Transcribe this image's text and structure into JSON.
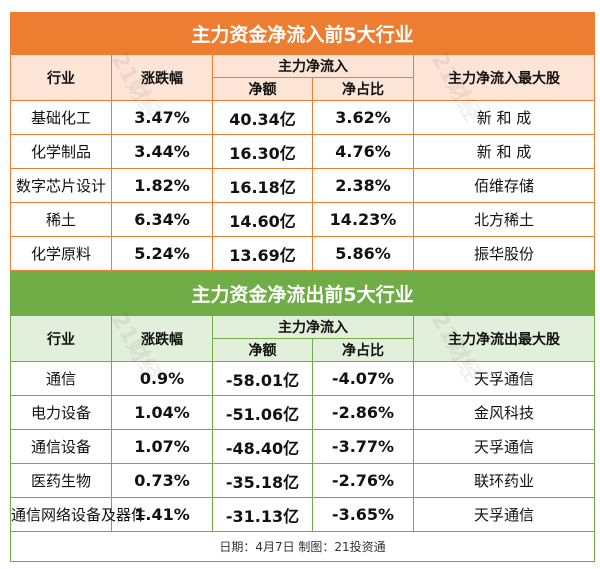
{
  "inflow": {
    "title": "主力资金净流入前5大行业",
    "headers": {
      "industry": "行业",
      "change": "涨跌幅",
      "group": "主力净流入",
      "net": "净额",
      "ratio": "净占比",
      "top_stock": "主力净流入最大股"
    },
    "rows": [
      {
        "industry": "基础化工",
        "change": "3.47%",
        "net": "40.34亿",
        "ratio": "3.62%",
        "stock": "新 和 成"
      },
      {
        "industry": "化学制品",
        "change": "3.44%",
        "net": "16.30亿",
        "ratio": "4.76%",
        "stock": "新 和 成"
      },
      {
        "industry": "数字芯片设计",
        "change": "1.82%",
        "net": "16.18亿",
        "ratio": "2.38%",
        "stock": "佰维存储"
      },
      {
        "industry": "稀土",
        "change": "6.34%",
        "net": "14.60亿",
        "ratio": "14.23%",
        "stock": "北方稀土"
      },
      {
        "industry": "化学原料",
        "change": "5.24%",
        "net": "13.69亿",
        "ratio": "5.86%",
        "stock": "振华股份"
      }
    ]
  },
  "outflow": {
    "title": "主力资金净流出前5大行业",
    "headers": {
      "industry": "行业",
      "change": "涨跌幅",
      "group": "主力净流入",
      "net": "净额",
      "ratio": "净占比",
      "top_stock": "主力净流出最大股"
    },
    "rows": [
      {
        "industry": "通信",
        "change": "0.9%",
        "net": "-58.01亿",
        "ratio": "-4.07%",
        "stock": "天孚通信"
      },
      {
        "industry": "电力设备",
        "change": "1.04%",
        "net": "-51.06亿",
        "ratio": "-2.86%",
        "stock": "金风科技"
      },
      {
        "industry": "通信设备",
        "change": "1.07%",
        "net": "-48.40亿",
        "ratio": "-3.77%",
        "stock": "天孚通信"
      },
      {
        "industry": "医药生物",
        "change": "0.73%",
        "net": "-35.18亿",
        "ratio": "-2.76%",
        "stock": "联环药业"
      },
      {
        "industry": "通信网络设备及器件",
        "change": "1.41%",
        "net": "-31.13亿",
        "ratio": "-3.65%",
        "stock": "天孚通信"
      }
    ]
  },
  "footer": "日期：4月7日 制图：21投资通",
  "watermark": "21财经",
  "colors": {
    "inflow": "#ED7D31",
    "inflow_header": "#FCE4D6",
    "outflow": "#70AD47",
    "outflow_header": "#E2EFDA"
  }
}
